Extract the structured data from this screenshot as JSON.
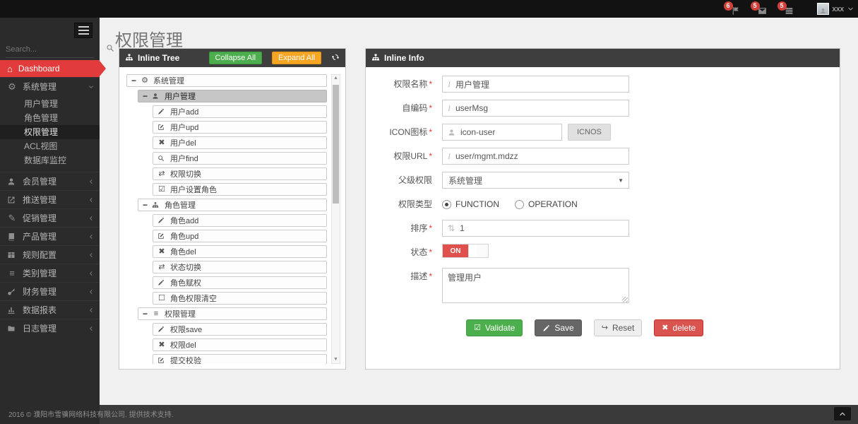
{
  "colors": {
    "accent_red": "#e23b3b",
    "success_green": "#4cae4c",
    "warning_orange": "#f6a623",
    "danger_red": "#d9534f",
    "panel_header": "#3e3e3e",
    "badge_red": "#d43f3a"
  },
  "navbar": {
    "notifications": [
      {
        "icon": "flag-icon",
        "count": "6"
      },
      {
        "icon": "envelope-icon",
        "count": "5"
      },
      {
        "icon": "tasks-icon",
        "count": "5"
      }
    ],
    "user": {
      "name": "xxx"
    }
  },
  "sidebar": {
    "search_placeholder": "Search...",
    "dashboard_label": "Dashboard",
    "groups": [
      {
        "icon": "gears-icon",
        "label": "系统管理",
        "expanded": true,
        "children": [
          {
            "label": "用户管理"
          },
          {
            "label": "角色管理"
          },
          {
            "label": "权限管理",
            "active": true
          },
          {
            "label": "ACL视图"
          },
          {
            "label": "数据库监控"
          }
        ]
      },
      {
        "icon": "member-icon",
        "label": "会员管理"
      },
      {
        "icon": "push-icon",
        "label": "推送管理"
      },
      {
        "icon": "promo-icon",
        "label": "促销管理"
      },
      {
        "icon": "product-icon",
        "label": "产品管理"
      },
      {
        "icon": "rules-icon",
        "label": "规则配置"
      },
      {
        "icon": "category-icon",
        "label": "类别管理"
      },
      {
        "icon": "finance-icon",
        "label": "财务管理"
      },
      {
        "icon": "report-icon",
        "label": "数据报表"
      },
      {
        "icon": "log-icon",
        "label": "日志管理"
      }
    ]
  },
  "page": {
    "title": "权限管理"
  },
  "tree_panel": {
    "title": "Inline Tree",
    "collapse_all_label": "Collapse All",
    "expand_all_label": "Expand All",
    "items": [
      {
        "level": 0,
        "toggle": "−",
        "icon": "gears-icon",
        "label": "系统管理"
      },
      {
        "level": 1,
        "toggle": "−",
        "icon": "user-icon",
        "label": "用户管理",
        "selected": true
      },
      {
        "level": 2,
        "icon": "pencil-icon",
        "label": "用户add"
      },
      {
        "level": 2,
        "icon": "edit-icon",
        "label": "用户upd"
      },
      {
        "level": 2,
        "icon": "x-icon",
        "label": "用户del"
      },
      {
        "level": 2,
        "icon": "search-icon",
        "label": "用户find"
      },
      {
        "level": 2,
        "icon": "retweet-icon",
        "label": "权限切换"
      },
      {
        "level": 2,
        "icon": "check-square-icon",
        "label": "用户设置角色"
      },
      {
        "level": 1,
        "toggle": "−",
        "icon": "sitemap-icon",
        "label": "角色管理"
      },
      {
        "level": 2,
        "icon": "pencil-icon",
        "label": "角色add"
      },
      {
        "level": 2,
        "icon": "edit-icon",
        "label": "角色upd"
      },
      {
        "level": 2,
        "icon": "x-icon",
        "label": "角色del"
      },
      {
        "level": 2,
        "icon": "retweet-icon",
        "label": "状态切换"
      },
      {
        "level": 2,
        "icon": "pencil-icon",
        "label": "角色赋权"
      },
      {
        "level": 2,
        "icon": "square-icon",
        "label": "角色权限清空"
      },
      {
        "level": 1,
        "toggle": "−",
        "icon": "list-icon",
        "label": "权限管理"
      },
      {
        "level": 2,
        "icon": "pencil-icon",
        "label": "权限save"
      },
      {
        "level": 2,
        "icon": "x-icon",
        "label": "权限del"
      },
      {
        "level": 2,
        "icon": "edit-icon",
        "label": "提交校验"
      }
    ]
  },
  "info_panel": {
    "title": "Inline Info",
    "fields": [
      {
        "label": "权限名称",
        "required": true,
        "type": "text",
        "icon": "italic-icon",
        "value": "用户管理"
      },
      {
        "label": "自编码",
        "required": true,
        "type": "text",
        "icon": "italic-icon",
        "value": "userMsg"
      },
      {
        "label": "ICON图标",
        "required": true,
        "type": "text-button",
        "icon": "user-icon",
        "value": "icon-user",
        "button_label": "ICNOS"
      },
      {
        "label": "权限URL",
        "required": true,
        "type": "text",
        "icon": "italic-icon",
        "value": "user/mgmt.mdzz"
      },
      {
        "label": "父级权限",
        "required": false,
        "type": "select",
        "value": "系统管理"
      },
      {
        "label": "权限类型",
        "required": false,
        "type": "radio",
        "options": [
          {
            "label": "FUNCTION",
            "selected": true
          },
          {
            "label": "OPERATION",
            "selected": false
          }
        ]
      },
      {
        "label": "排序",
        "required": true,
        "type": "text",
        "icon": "sort-icon",
        "value": "1"
      },
      {
        "label": "状态",
        "required": true,
        "type": "toggle",
        "value": "ON"
      },
      {
        "label": "描述",
        "required": true,
        "type": "textarea",
        "value": "管理用户"
      }
    ],
    "buttons": [
      {
        "label": "Validate",
        "icon": "check-square-icon",
        "style": "success"
      },
      {
        "label": "Save",
        "icon": "pencil-icon",
        "style": "dark"
      },
      {
        "label": "Reset",
        "icon": "redo-icon",
        "style": "light"
      },
      {
        "label": "delete",
        "icon": "x-icon",
        "style": "danger"
      }
    ]
  },
  "footer": {
    "text": "2016 © 濮阳市雪骥网络科技有限公司. 提供技术支持."
  }
}
